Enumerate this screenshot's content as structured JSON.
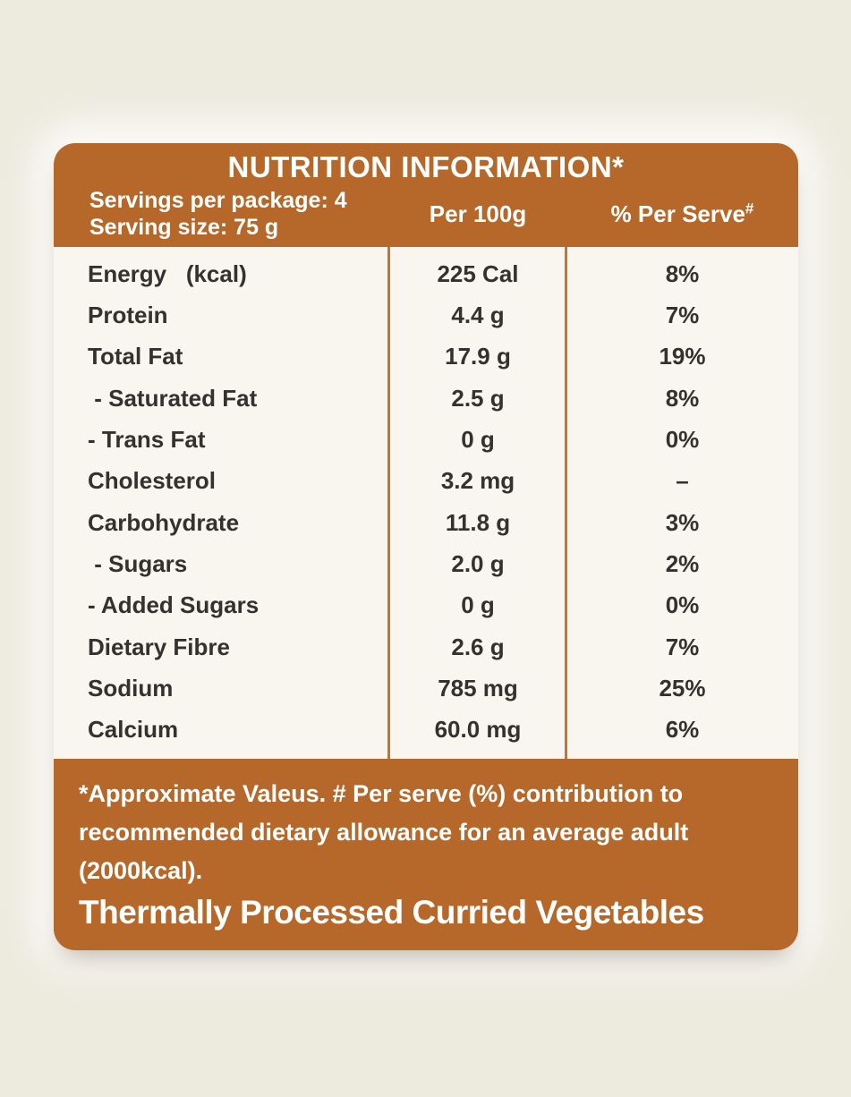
{
  "label": {
    "colors": {
      "accent": "#b5682a",
      "divider": "#c2772e",
      "body_bg": "#f8f6ee",
      "page_bg": "#edeade",
      "text_dark": "#34322e",
      "text_light": "#ffffff"
    },
    "header": {
      "title": "NUTRITION INFORMATION*",
      "servings_line1": "Servings per package: 4",
      "servings_line2": "Serving size: 75 g",
      "col_per100g": "Per 100g",
      "col_perserve": "% Per Serve",
      "col_perserve_sup": "#"
    },
    "rows": [
      {
        "name": "Energy   (kcal)",
        "per100g": "225 Cal",
        "per_serve": "8%"
      },
      {
        "name": "Protein",
        "per100g": "4.4 g",
        "per_serve": "7%"
      },
      {
        "name": "Total Fat",
        "per100g": "17.9 g",
        "per_serve": "19%"
      },
      {
        "name": " - Saturated Fat",
        "per100g": "2.5 g",
        "per_serve": "8%"
      },
      {
        "name": "- Trans Fat",
        "per100g": "0 g",
        "per_serve": "0%"
      },
      {
        "name": "Cholesterol",
        "per100g": "3.2 mg",
        "per_serve": "–"
      },
      {
        "name": "Carbohydrate",
        "per100g": "11.8 g",
        "per_serve": "3%"
      },
      {
        "name": " - Sugars",
        "per100g": "2.0 g",
        "per_serve": "2%"
      },
      {
        "name": "- Added Sugars",
        "per100g": "0 g",
        "per_serve": "0%"
      },
      {
        "name": "Dietary Fibre",
        "per100g": "2.6 g",
        "per_serve": "7%"
      },
      {
        "name": "Sodium",
        "per100g": "785 mg",
        "per_serve": "25%"
      },
      {
        "name": "Calcium",
        "per100g": "60.0 mg",
        "per_serve": "6%"
      }
    ],
    "footer": {
      "note": "*Approximate Valeus. # Per serve (%) contribution to recommended dietary allowance for an average adult (2000kcal).",
      "product_name": "Thermally Processed Curried Vegetables"
    }
  }
}
